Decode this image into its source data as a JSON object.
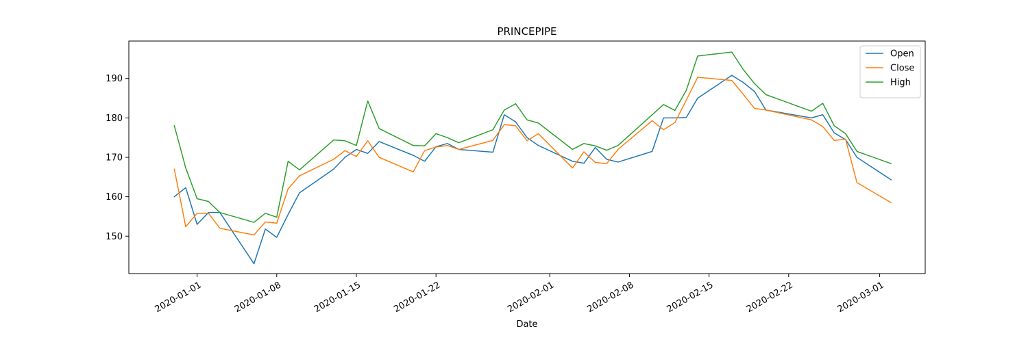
{
  "chart_data": {
    "type": "line",
    "title": "PRINCEPIPE",
    "xlabel": "Date",
    "ylabel": "",
    "ylim": [
      140.5,
      199.5
    ],
    "xlim": [
      "2019-12-26",
      "2020-03-05"
    ],
    "yticks": [
      150,
      160,
      170,
      180,
      190
    ],
    "xticks": [
      "2020-01-01",
      "2020-01-08",
      "2020-01-15",
      "2020-01-22",
      "2020-02-01",
      "2020-02-08",
      "2020-02-15",
      "2020-02-22",
      "2020-03-01"
    ],
    "grid": false,
    "legend_position": "top-right",
    "x": [
      "2019-12-30",
      "2019-12-31",
      "2020-01-01",
      "2020-01-02",
      "2020-01-03",
      "2020-01-06",
      "2020-01-07",
      "2020-01-08",
      "2020-01-09",
      "2020-01-10",
      "2020-01-13",
      "2020-01-14",
      "2020-01-15",
      "2020-01-16",
      "2020-01-17",
      "2020-01-20",
      "2020-01-21",
      "2020-01-22",
      "2020-01-23",
      "2020-01-24",
      "2020-01-27",
      "2020-01-28",
      "2020-01-29",
      "2020-01-30",
      "2020-01-31",
      "2020-02-03",
      "2020-02-04",
      "2020-02-05",
      "2020-02-06",
      "2020-02-07",
      "2020-02-10",
      "2020-02-11",
      "2020-02-12",
      "2020-02-13",
      "2020-02-14",
      "2020-02-17",
      "2020-02-18",
      "2020-02-19",
      "2020-02-20",
      "2020-02-24",
      "2020-02-25",
      "2020-02-26",
      "2020-02-27",
      "2020-02-28",
      "2020-03-02"
    ],
    "series": [
      {
        "name": "Open",
        "color": "#1f77b4",
        "values": [
          160.0,
          162.3,
          153.0,
          156.0,
          156.0,
          143.0,
          151.8,
          149.7,
          155.5,
          161.0,
          167.0,
          170.0,
          172.0,
          171.0,
          174.0,
          170.5,
          169.0,
          172.7,
          173.5,
          172.0,
          171.3,
          180.8,
          179.0,
          175.0,
          173.0,
          169.0,
          168.5,
          172.5,
          169.5,
          168.8,
          171.5,
          180.0,
          180.0,
          180.1,
          185.0,
          190.8,
          189.0,
          186.7,
          182.0,
          180.0,
          180.8,
          176.2,
          174.5,
          170.0,
          164.3
        ]
      },
      {
        "name": "Close",
        "color": "#ff7f0e",
        "values": [
          167.0,
          152.4,
          155.8,
          155.8,
          152.0,
          150.3,
          153.6,
          153.3,
          162.0,
          165.3,
          169.5,
          171.7,
          170.2,
          174.2,
          170.0,
          166.3,
          171.7,
          172.6,
          173.0,
          172.0,
          174.3,
          178.3,
          178.0,
          174.2,
          176.0,
          167.3,
          171.4,
          168.7,
          168.4,
          172.0,
          179.3,
          177.0,
          178.8,
          184.5,
          190.3,
          189.5,
          186.0,
          182.4,
          182.0,
          179.5,
          177.8,
          174.3,
          174.6,
          163.6,
          158.5
        ]
      },
      {
        "name": "High",
        "color": "#2ca02c",
        "values": [
          178.0,
          167.3,
          159.5,
          158.8,
          156.0,
          153.5,
          155.8,
          154.8,
          169.0,
          166.8,
          174.4,
          174.2,
          173.0,
          184.3,
          177.3,
          173.0,
          172.9,
          176.0,
          175.0,
          173.7,
          177.0,
          182.0,
          183.6,
          179.5,
          178.7,
          172.0,
          173.5,
          172.9,
          171.8,
          173.0,
          180.8,
          183.4,
          181.9,
          187.0,
          195.7,
          196.7,
          192.3,
          188.7,
          185.9,
          181.7,
          183.7,
          178.0,
          176.0,
          171.5,
          168.4
        ]
      }
    ]
  }
}
